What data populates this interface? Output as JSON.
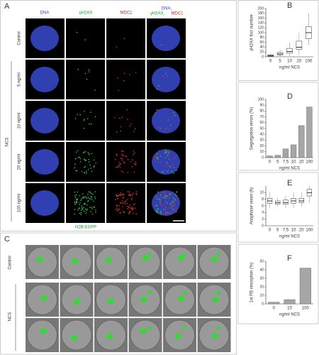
{
  "panel_a": {
    "label": "A",
    "columns": [
      "DNA",
      "γH2AX",
      "MDC1"
    ],
    "merge_header": [
      "DNA,",
      "γH2AX,",
      "MDC1"
    ],
    "rows": [
      "Control",
      "5 ng/ml",
      "10 ng/ml",
      "20 ng/ml",
      "100 ng/ml"
    ],
    "group": "NCS",
    "caption": "H2B-EGFP"
  },
  "panel_c": {
    "label": "C",
    "rows": [
      "Control",
      "NCS"
    ]
  },
  "chart_data": [
    {
      "type": "box",
      "label": "B",
      "y_label": "γH2AX foci number",
      "x_label": "ng/ml NCS",
      "categories": [
        "0",
        "5",
        "10",
        "20",
        "100"
      ],
      "min": [
        0,
        2,
        5,
        10,
        50
      ],
      "q1": [
        2,
        8,
        15,
        30,
        75
      ],
      "median": [
        5,
        12,
        22,
        40,
        100
      ],
      "q3": [
        8,
        18,
        35,
        65,
        125
      ],
      "max": [
        15,
        30,
        60,
        100,
        180
      ],
      "ylim": [
        0,
        200
      ],
      "yticks": [
        0,
        20,
        40,
        60,
        80,
        100,
        120,
        140,
        160,
        180,
        200
      ],
      "color": "#ffffff"
    },
    {
      "type": "bar",
      "label": "D",
      "y_label": "Segregation errors (%)",
      "x_label": "ng/ml NCS",
      "categories": [
        "0",
        "5",
        "7.5",
        "10",
        "20",
        "100"
      ],
      "values": [
        3,
        4,
        15,
        22,
        55,
        87
      ],
      "ylim": [
        0,
        100
      ],
      "yticks": [
        0,
        10,
        20,
        30,
        40,
        50,
        60,
        70,
        80,
        90,
        100
      ],
      "color": "#a6a6a6"
    },
    {
      "type": "box",
      "label": "E",
      "y_label": "Anaphase onset (h)",
      "x_label": "ng/ml NCS",
      "categories": [
        "0",
        "5",
        "7.5",
        "10",
        "20",
        "100"
      ],
      "min": [
        5.5,
        5.8,
        5.5,
        5.5,
        6,
        7
      ],
      "q1": [
        6.8,
        6.5,
        6.5,
        6.8,
        7,
        9
      ],
      "median": [
        7.5,
        7,
        7,
        7.5,
        7.5,
        10
      ],
      "q3": [
        8.3,
        7.5,
        7.8,
        8.3,
        8.3,
        11
      ],
      "max": [
        10,
        8.5,
        9,
        10,
        10,
        12
      ],
      "ylim": [
        0,
        12
      ],
      "yticks": [
        0,
        2,
        4,
        6,
        8,
        10
      ],
      "color": "#ffffff"
    },
    {
      "type": "bar",
      "label": "F",
      "y_label": "1st PB resorption (%)",
      "x_label": "ng/ml NCS",
      "categories": [
        "0",
        "10",
        "100"
      ],
      "values": [
        2,
        5,
        42
      ],
      "ylim": [
        0,
        50
      ],
      "yticks": [
        0,
        10,
        20,
        30,
        40,
        50
      ],
      "color": "#a6a6a6"
    }
  ]
}
